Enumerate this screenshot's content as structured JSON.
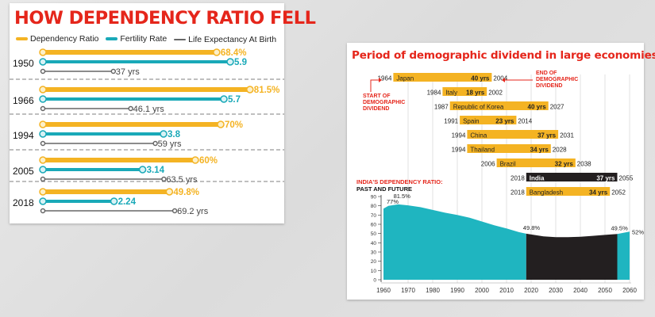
{
  "chart_data": [
    {
      "type": "bar",
      "title": "HOW DEPENDENCY RATIO FELL",
      "legend": [
        "Dependency Ratio",
        "Fertility Rate",
        "Life Expectancy At Birth"
      ],
      "colors": {
        "dependency": "#f4b323",
        "fertility": "#19a9b8",
        "life": "#666666",
        "title": "#e5261b"
      },
      "categories": [
        "1950",
        "1966",
        "1994",
        "2005",
        "2018"
      ],
      "series": [
        {
          "name": "Dependency Ratio",
          "values": [
            68.4,
            81.5,
            70,
            60,
            49.8
          ],
          "labels": [
            "68.4%",
            "81.5%",
            "70%",
            "60%",
            "49.8%"
          ]
        },
        {
          "name": "Fertility Rate",
          "values": [
            5.9,
            5.7,
            3.8,
            3.14,
            2.24
          ],
          "labels": [
            "5.9",
            "5.7",
            "3.8",
            "3.14",
            "2.24"
          ]
        },
        {
          "name": "Life Expectancy At Birth",
          "values": [
            37,
            46.1,
            59,
            63.5,
            69.2
          ],
          "labels": [
            "37 yrs",
            "46.1 yrs",
            "59 yrs",
            "63.5 yrs",
            "69.2 yrs"
          ]
        }
      ]
    },
    {
      "type": "bar",
      "subtype": "timeline",
      "title": "Period of demographic dividend in large economies",
      "annotations": {
        "start": "START OF DEMOGRAPHIC DIVIDEND",
        "end": "END OF DEMOGRAPHIC DIVIDEND"
      },
      "colors": {
        "bar": "#f4b323",
        "highlight": "#231f20",
        "area": "#1fb5c0"
      },
      "rows": [
        {
          "country": "Japan",
          "start": 1964,
          "end": 2004,
          "duration": "40 yrs"
        },
        {
          "country": "Italy",
          "start": 1984,
          "end": 2002,
          "duration": "18 yrs"
        },
        {
          "country": "Republic of Korea",
          "start": 1987,
          "end": 2027,
          "duration": "40 yrs"
        },
        {
          "country": "Spain",
          "start": 1991,
          "end": 2014,
          "duration": "23 yrs"
        },
        {
          "country": "China",
          "start": 1994,
          "end": 2031,
          "duration": "37 yrs"
        },
        {
          "country": "Thailand",
          "start": 1994,
          "end": 2028,
          "duration": "34 yrs"
        },
        {
          "country": "Brazil",
          "start": 2006,
          "end": 2038,
          "duration": "32 yrs"
        },
        {
          "country": "India",
          "start": 2018,
          "end": 2055,
          "duration": "37 yrs",
          "highlight": true
        },
        {
          "country": "Bangladesh",
          "start": 2018,
          "end": 2052,
          "duration": "34 yrs"
        }
      ]
    },
    {
      "type": "area",
      "title": "INDIA'S DEPENDENCY RATIO: PAST AND FUTURE",
      "x": [
        1960,
        1962,
        1966,
        1970,
        1975,
        1980,
        1985,
        1990,
        1995,
        2000,
        2005,
        2010,
        2015,
        2018,
        2025,
        2030,
        2035,
        2040,
        2045,
        2050,
        2055,
        2060
      ],
      "y": [
        77,
        80,
        81.5,
        80.5,
        78.5,
        75.5,
        72.5,
        70,
        67,
        63,
        59,
        55.5,
        51.5,
        49.8,
        47,
        46,
        46,
        46.5,
        47.5,
        48.5,
        49.5,
        52
      ],
      "annotations": [
        {
          "x": 1960,
          "label": "77%"
        },
        {
          "x": 1966,
          "label": "81.5%"
        },
        {
          "x": 2018,
          "label": "49.8%"
        },
        {
          "x": 2055,
          "label": "49.5%"
        },
        {
          "x": 2060,
          "label": "52%"
        }
      ],
      "xlim": [
        1960,
        2060
      ],
      "ylim": [
        0,
        90
      ],
      "xticks": [
        "1960",
        "1970",
        "1980",
        "1990",
        "2000",
        "2010",
        "2020",
        "2030",
        "2040",
        "2050",
        "2060"
      ],
      "yticks": [
        "0",
        "10",
        "20",
        "30",
        "40",
        "50",
        "60",
        "70",
        "80",
        "90"
      ]
    }
  ]
}
